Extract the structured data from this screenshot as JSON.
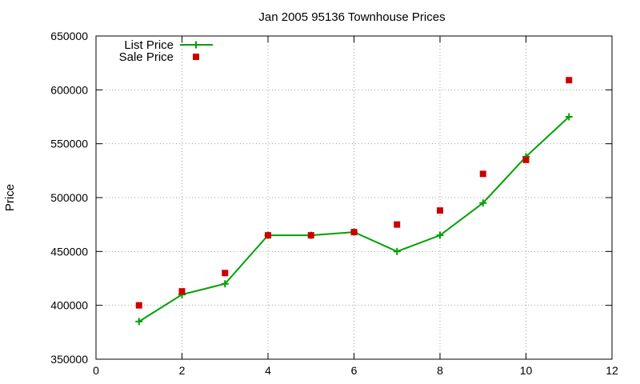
{
  "chart_data": {
    "type": "line",
    "title": "Jan 2005 95136 Townhouse Prices",
    "xlabel": "",
    "ylabel": "Price",
    "xlim": [
      0,
      12
    ],
    "ylim": [
      350000,
      650000
    ],
    "xticks": [
      0,
      2,
      4,
      6,
      8,
      10,
      12
    ],
    "yticks": [
      350000,
      400000,
      450000,
      500000,
      550000,
      600000,
      650000
    ],
    "grid": true,
    "legend_position": "top-left",
    "series": [
      {
        "name": "List Price",
        "style": "line-with-plus-markers",
        "color": "#00a000",
        "x": [
          1,
          2,
          3,
          4,
          5,
          6,
          7,
          8,
          9,
          10,
          11
        ],
        "y": [
          385000,
          410000,
          420000,
          465000,
          465000,
          468000,
          450000,
          465000,
          495000,
          538000,
          575000
        ]
      },
      {
        "name": "Sale Price",
        "style": "square-markers",
        "color": "#cc0000",
        "x": [
          1,
          2,
          3,
          4,
          5,
          6,
          7,
          8,
          9,
          10,
          11
        ],
        "y": [
          400000,
          413000,
          430000,
          465000,
          465000,
          468000,
          475000,
          488000,
          522000,
          535000,
          609000
        ]
      }
    ]
  }
}
